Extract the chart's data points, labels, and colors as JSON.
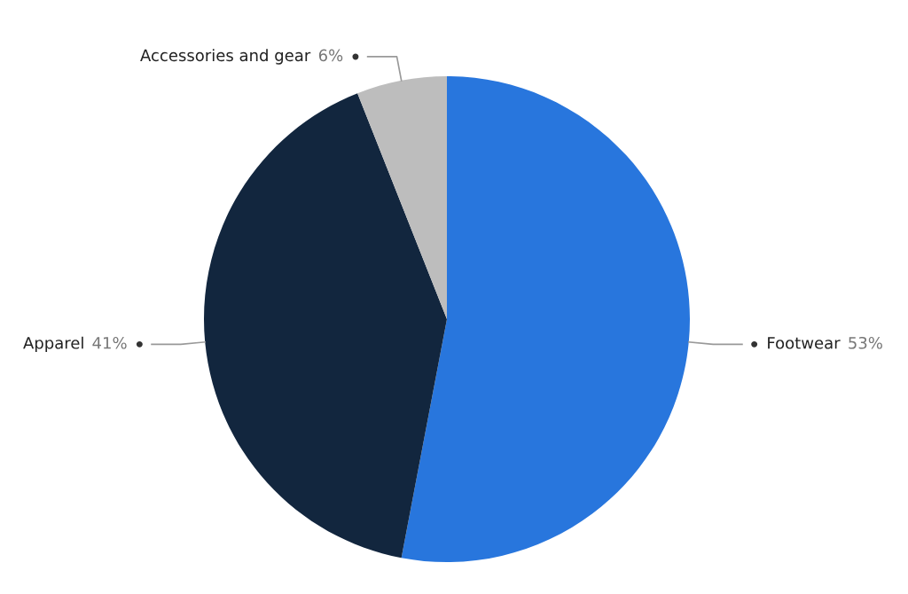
{
  "chart_data": {
    "type": "pie",
    "categories": [
      "Footwear",
      "Apparel",
      "Accessories and gear"
    ],
    "values": [
      53,
      41,
      6
    ],
    "value_labels": [
      "53%",
      "41%",
      "6%"
    ],
    "colors": [
      "#2876dd",
      "#12263e",
      "#bdbdbd"
    ]
  }
}
